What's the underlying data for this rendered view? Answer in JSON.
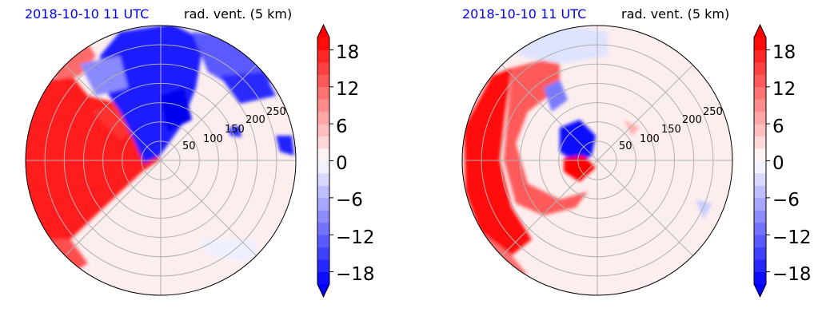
{
  "chart_data": [
    {
      "type": "heatmap",
      "projection": "polar",
      "date_label": "2018-10-10 11 UTC",
      "variable_label": "rad. vent. (5 km)",
      "range_ring_labels": [
        "50",
        "100",
        "150",
        "200",
        "250"
      ],
      "range_rings_km": [
        50,
        100,
        150,
        200,
        250,
        300,
        350
      ],
      "max_range_km": 350,
      "colorbar": {
        "colormap": "bwr",
        "vmin": -20,
        "vmax": 20,
        "levels_step": 2,
        "extend": "both",
        "ticks": [
          18,
          12,
          6,
          0,
          -6,
          -12,
          -18
        ],
        "tick_labels": [
          "18",
          "12",
          "6",
          "0",
          "−6",
          "−12",
          "−18"
        ]
      }
    },
    {
      "type": "heatmap",
      "projection": "polar",
      "date_label": "2018-10-10 11 UTC",
      "variable_label": "rad. vent. (5 km)",
      "range_ring_labels": [
        "50",
        "100",
        "150",
        "200",
        "250"
      ],
      "range_rings_km": [
        50,
        100,
        150,
        200,
        250,
        300,
        350
      ],
      "max_range_km": 350,
      "colorbar": {
        "colormap": "bwr",
        "vmin": -20,
        "vmax": 20,
        "levels_step": 2,
        "extend": "both",
        "ticks": [
          18,
          12,
          6,
          0,
          -6,
          -12,
          -18
        ],
        "tick_labels": [
          "18",
          "12",
          "6",
          "0",
          "−6",
          "−12",
          "−18"
        ]
      }
    }
  ],
  "colors": {
    "positive": "#ff0000",
    "negative": "#0000ff",
    "neutral": "#ffffff",
    "grid": "#b0b0b0"
  }
}
